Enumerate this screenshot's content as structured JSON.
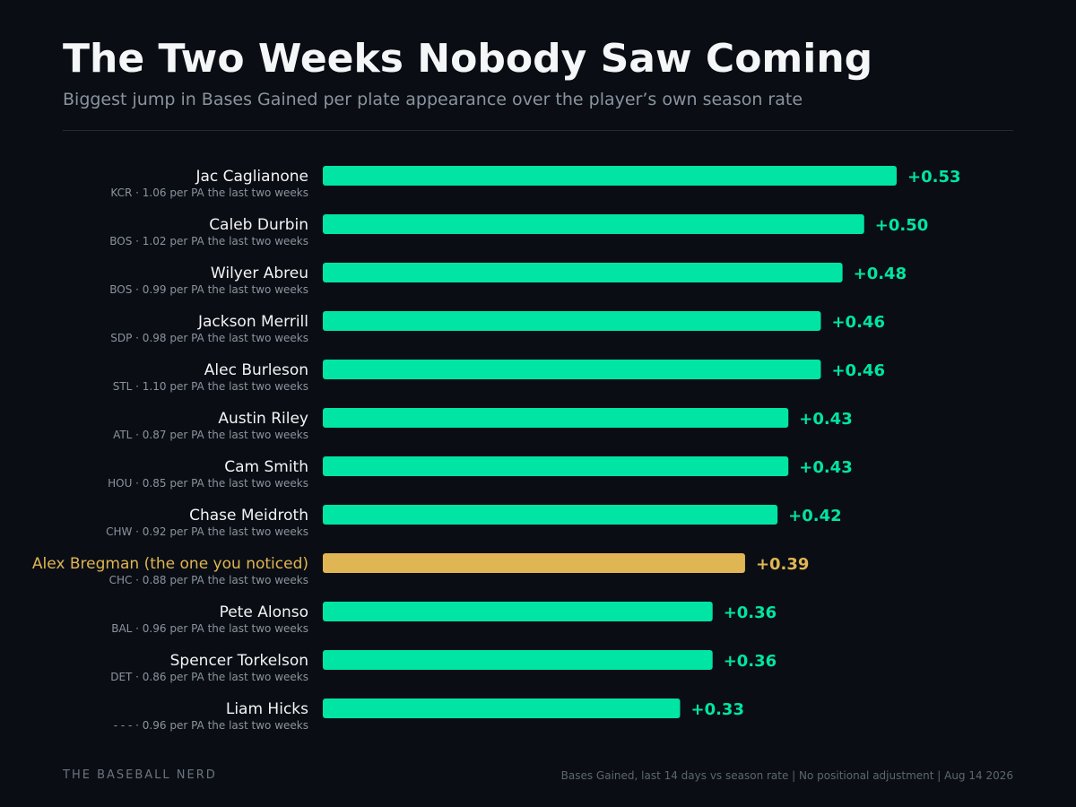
{
  "header": {
    "title": "The Two Weeks Nobody Saw Coming",
    "subtitle": "Biggest jump in Bases Gained per plate appearance over the player’s own season rate"
  },
  "footer": {
    "brand": "THE BASEBALL NERD",
    "note": "Bases Gained, last 14 days vs season rate | No positional adjustment | Aug 14 2026"
  },
  "colors": {
    "background": "#0a0e14",
    "bar": "#00e5a4",
    "highlight": "#e0b553",
    "name_text": "#f2f4f6",
    "sub_text": "#8a939e"
  },
  "chart_data": {
    "type": "bar",
    "orientation": "horizontal",
    "xlim": [
      0,
      0.53
    ],
    "grid": false,
    "legend": "none",
    "categories": [
      "Jac Caglianone",
      "Caleb Durbin",
      "Wilyer Abreu",
      "Jackson Merrill",
      "Alec Burleson",
      "Austin Riley",
      "Cam Smith",
      "Chase Meidroth",
      "Alex Bregman (the one you noticed)",
      "Pete Alonso",
      "Spencer Torkelson",
      "Liam Hicks"
    ],
    "values": [
      0.53,
      0.5,
      0.48,
      0.46,
      0.46,
      0.43,
      0.43,
      0.42,
      0.39,
      0.36,
      0.36,
      0.33
    ],
    "value_labels": [
      "+0.53",
      "+0.50",
      "+0.48",
      "+0.46",
      "+0.46",
      "+0.43",
      "+0.43",
      "+0.42",
      "+0.39",
      "+0.36",
      "+0.36",
      "+0.33"
    ],
    "sublabels": [
      "KCR · 1.06 per PA the last two weeks",
      "BOS · 1.02 per PA the last two weeks",
      "BOS · 0.99 per PA the last two weeks",
      "SDP · 0.98 per PA the last two weeks",
      "STL · 1.10 per PA the last two weeks",
      "ATL · 0.87 per PA the last two weeks",
      "HOU · 0.85 per PA the last two weeks",
      "CHW · 0.92 per PA the last two weeks",
      "CHC · 0.88 per PA the last two weeks",
      "BAL · 0.96 per PA the last two weeks",
      "DET · 0.86 per PA the last two weeks",
      "- - - · 0.96 per PA the last two weeks"
    ],
    "highlight_index": 8
  }
}
